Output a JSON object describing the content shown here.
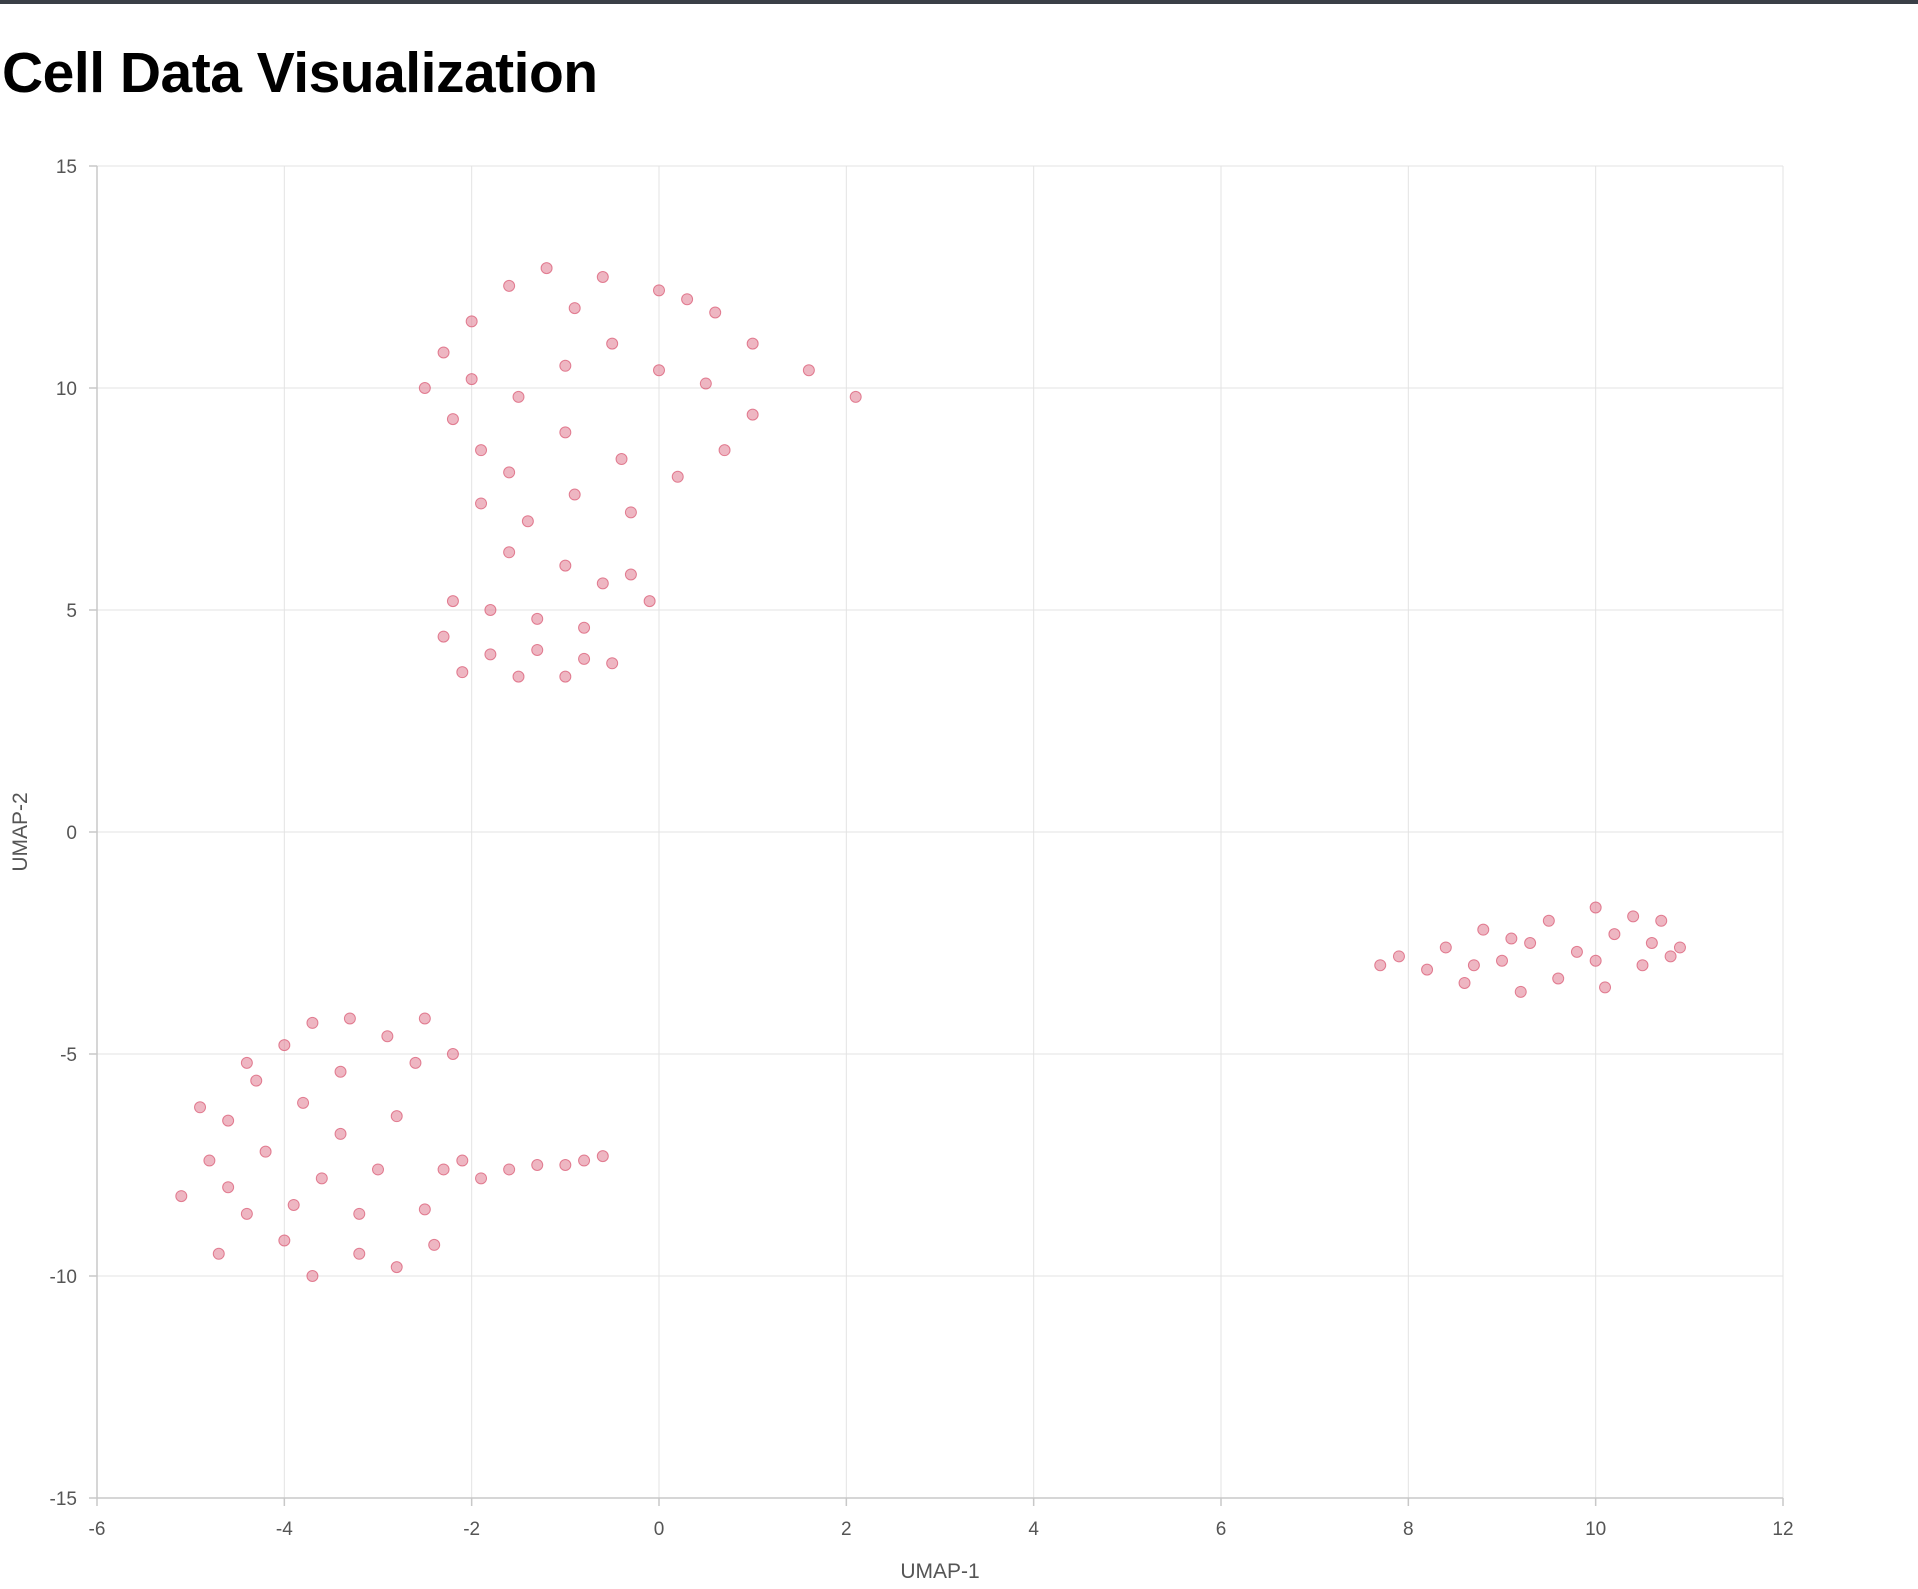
{
  "page": {
    "title": "Cell Data Visualization"
  },
  "colors": {
    "point_fill": "#e07a8f",
    "point_stroke": "#d9546f",
    "grid": "#e3e3e3",
    "axis": "#c8c8c8",
    "tick_text": "#555555",
    "top_bar": "#3a3f47"
  },
  "chart_data": {
    "type": "scatter",
    "title": "",
    "xlabel": "UMAP-1",
    "ylabel": "UMAP-2",
    "xlim": [
      -6,
      12
    ],
    "ylim": [
      -15,
      15
    ],
    "x_ticks": [
      -6,
      -4,
      -2,
      0,
      2,
      4,
      6,
      8,
      10,
      12
    ],
    "y_ticks": [
      -15,
      -10,
      -5,
      0,
      5,
      10,
      15
    ],
    "grid": true,
    "legend": "none",
    "series": [
      {
        "points": [
          [
            -2.5,
            10.0
          ],
          [
            -2.3,
            10.8
          ],
          [
            -2.0,
            11.5
          ],
          [
            -1.6,
            12.3
          ],
          [
            -1.2,
            12.7
          ],
          [
            -0.6,
            12.5
          ],
          [
            0.0,
            12.2
          ],
          [
            0.6,
            11.7
          ],
          [
            1.0,
            11.0
          ],
          [
            1.6,
            10.4
          ],
          [
            2.1,
            9.8
          ],
          [
            -2.2,
            9.3
          ],
          [
            -1.9,
            8.6
          ],
          [
            -1.5,
            9.8
          ],
          [
            -1.0,
            10.5
          ],
          [
            -0.5,
            11.0
          ],
          [
            0.0,
            10.4
          ],
          [
            0.5,
            10.1
          ],
          [
            1.0,
            9.4
          ],
          [
            0.7,
            8.6
          ],
          [
            0.2,
            8.0
          ],
          [
            -0.4,
            8.4
          ],
          [
            -1.0,
            9.0
          ],
          [
            -1.6,
            8.1
          ],
          [
            -1.9,
            7.4
          ],
          [
            -1.4,
            7.0
          ],
          [
            -0.9,
            7.6
          ],
          [
            -0.3,
            7.2
          ],
          [
            -1.6,
            6.3
          ],
          [
            -1.0,
            6.0
          ],
          [
            -0.6,
            5.6
          ],
          [
            -0.3,
            5.8
          ],
          [
            -0.1,
            5.2
          ],
          [
            -2.2,
            5.2
          ],
          [
            -1.8,
            5.0
          ],
          [
            -1.3,
            4.8
          ],
          [
            -0.8,
            4.6
          ],
          [
            -2.3,
            4.4
          ],
          [
            -1.8,
            4.0
          ],
          [
            -1.3,
            4.1
          ],
          [
            -0.8,
            3.9
          ],
          [
            -2.1,
            3.6
          ],
          [
            -1.5,
            3.5
          ],
          [
            -1.0,
            3.5
          ],
          [
            -0.5,
            3.8
          ],
          [
            -0.9,
            11.8
          ],
          [
            0.3,
            12.0
          ],
          [
            -2.0,
            10.2
          ],
          [
            -5.1,
            -8.2
          ],
          [
            -4.8,
            -7.4
          ],
          [
            -4.6,
            -6.5
          ],
          [
            -4.3,
            -5.6
          ],
          [
            -4.0,
            -4.8
          ],
          [
            -3.7,
            -4.3
          ],
          [
            -3.3,
            -4.2
          ],
          [
            -2.9,
            -4.6
          ],
          [
            -2.6,
            -5.2
          ],
          [
            -2.2,
            -5.0
          ],
          [
            -2.5,
            -4.2
          ],
          [
            -4.7,
            -9.5
          ],
          [
            -4.4,
            -8.6
          ],
          [
            -4.0,
            -9.2
          ],
          [
            -3.7,
            -10.0
          ],
          [
            -3.2,
            -9.5
          ],
          [
            -2.8,
            -9.8
          ],
          [
            -2.4,
            -9.3
          ],
          [
            -2.5,
            -8.5
          ],
          [
            -3.0,
            -7.6
          ],
          [
            -3.4,
            -6.8
          ],
          [
            -3.8,
            -6.1
          ],
          [
            -4.2,
            -7.2
          ],
          [
            -3.6,
            -7.8
          ],
          [
            -3.2,
            -8.6
          ],
          [
            -2.8,
            -6.4
          ],
          [
            -3.4,
            -5.4
          ],
          [
            -4.4,
            -5.2
          ],
          [
            -4.9,
            -6.2
          ],
          [
            -4.6,
            -8.0
          ],
          [
            -3.9,
            -8.4
          ],
          [
            -2.3,
            -7.6
          ],
          [
            -1.9,
            -7.8
          ],
          [
            -1.6,
            -7.6
          ],
          [
            -1.3,
            -7.5
          ],
          [
            -1.0,
            -7.5
          ],
          [
            -0.8,
            -7.4
          ],
          [
            -0.6,
            -7.3
          ],
          [
            -2.1,
            -7.4
          ],
          [
            7.7,
            -3.0
          ],
          [
            7.9,
            -2.8
          ],
          [
            8.2,
            -3.1
          ],
          [
            8.4,
            -2.6
          ],
          [
            8.6,
            -3.4
          ],
          [
            8.8,
            -2.2
          ],
          [
            9.0,
            -2.9
          ],
          [
            9.2,
            -3.6
          ],
          [
            9.3,
            -2.5
          ],
          [
            9.5,
            -2.0
          ],
          [
            9.6,
            -3.3
          ],
          [
            9.8,
            -2.7
          ],
          [
            10.0,
            -1.7
          ],
          [
            10.1,
            -3.5
          ],
          [
            10.2,
            -2.3
          ],
          [
            10.4,
            -1.9
          ],
          [
            10.5,
            -3.0
          ],
          [
            10.6,
            -2.5
          ],
          [
            10.7,
            -2.0
          ],
          [
            10.8,
            -2.8
          ],
          [
            10.9,
            -2.6
          ],
          [
            9.1,
            -2.4
          ],
          [
            8.7,
            -3.0
          ],
          [
            10.0,
            -2.9
          ]
        ]
      }
    ]
  }
}
